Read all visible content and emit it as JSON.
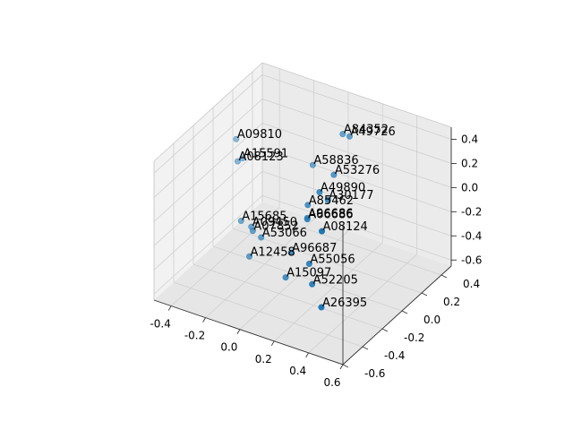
{
  "chart_data": {
    "type": "scatter",
    "projection": "3d",
    "title": "",
    "xlabel": "",
    "ylabel": "",
    "zlabel": "",
    "grid": true,
    "marker_color": "#1f77b4",
    "pane_colors": [
      "#f2f2f2",
      "#ebebeb",
      "#e6e6e6"
    ],
    "grid_color": "#d0d0d0",
    "xlim": [
      -0.5,
      0.6
    ],
    "ylim": [
      -0.6,
      0.5
    ],
    "zlim": [
      -0.65,
      0.5
    ],
    "xticks": [
      "-0.4",
      "-0.2",
      "0.0",
      "0.2",
      "0.4",
      "0.6"
    ],
    "yticks": [
      "-0.6",
      "-0.4",
      "-0.2",
      "0.0",
      "0.2",
      "0.4"
    ],
    "zticks": [
      "-0.6",
      "-0.4",
      "-0.2",
      "0.0",
      "0.2",
      "0.4"
    ],
    "points": [
      {
        "label": "A84352",
        "x": 0.06,
        "y": 0.34,
        "z": 0.3
      },
      {
        "label": "A49726",
        "x": 0.1,
        "y": 0.34,
        "z": 0.3
      },
      {
        "label": "A58836",
        "x": -0.08,
        "y": 0.28,
        "z": 0.02
      },
      {
        "label": "A53276",
        "x": 0.1,
        "y": 0.18,
        "z": 0.1
      },
      {
        "label": "A09810",
        "x": -0.48,
        "y": 0.2,
        "z": 0.1
      },
      {
        "label": "A15591",
        "x": -0.42,
        "y": 0.16,
        "z": 0.0
      },
      {
        "label": "A08123",
        "x": -0.46,
        "y": 0.18,
        "z": -0.06
      },
      {
        "label": "A49890",
        "x": 0.12,
        "y": 0.0,
        "z": 0.1
      },
      {
        "label": "A30177",
        "x": 0.18,
        "y": -0.02,
        "z": 0.08
      },
      {
        "label": "A85462",
        "x": 0.04,
        "y": 0.02,
        "z": -0.06
      },
      {
        "label": "A96686",
        "x": 0.02,
        "y": 0.05,
        "z": -0.2
      },
      {
        "label": "A66686",
        "x": 0.02,
        "y": 0.05,
        "z": -0.21
      },
      {
        "label": "A08124",
        "x": 0.34,
        "y": -0.36,
        "z": 0.15
      },
      {
        "label": "A15685",
        "x": -0.36,
        "y": 0.04,
        "z": -0.4
      },
      {
        "label": "A96687",
        "x": 0.0,
        "y": -0.08,
        "z": -0.4
      },
      {
        "label": "A55056",
        "x": 0.14,
        "y": -0.14,
        "z": -0.38
      },
      {
        "label": "A09450",
        "x": -0.3,
        "y": 0.04,
        "z": -0.42
      },
      {
        "label": "A07852",
        "x": -0.28,
        "y": 0.02,
        "z": -0.43
      },
      {
        "label": "A53066",
        "x": -0.22,
        "y": 0.0,
        "z": -0.44
      },
      {
        "label": "A12458",
        "x": -0.26,
        "y": -0.05,
        "z": -0.58
      },
      {
        "label": "A52205",
        "x": 0.18,
        "y": -0.18,
        "z": -0.5
      },
      {
        "label": "A15097",
        "x": -0.02,
        "y": -0.1,
        "z": -0.6
      },
      {
        "label": "A26395",
        "x": 0.36,
        "y": -0.4,
        "z": -0.44
      }
    ]
  }
}
